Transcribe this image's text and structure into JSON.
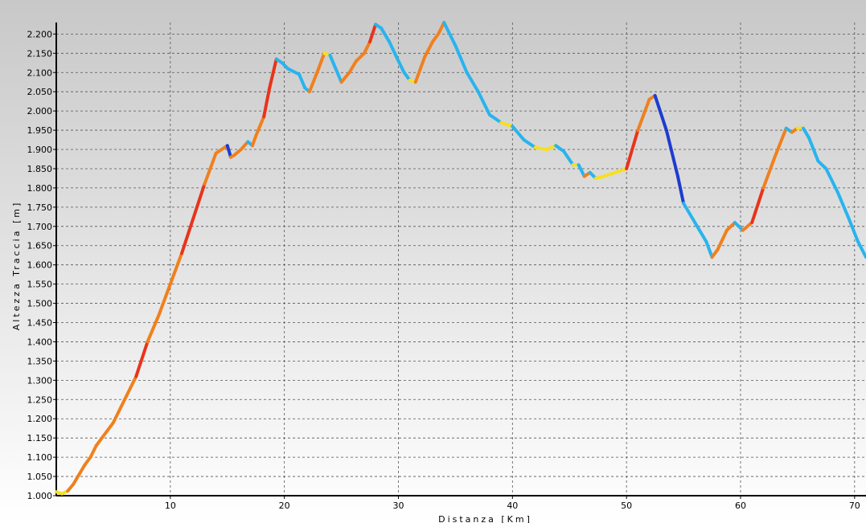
{
  "chart_data": {
    "type": "line",
    "xlabel": "Distanza [Km]",
    "ylabel": "Altezza Traccia [m]",
    "xlim": [
      0,
      71
    ],
    "ylim": [
      1000,
      2230
    ],
    "x_ticks": [
      10,
      20,
      30,
      40,
      50,
      60,
      70
    ],
    "x_tick_labels": [
      "10",
      "20",
      "30",
      "40",
      "50",
      "60",
      "70"
    ],
    "y_ticks": [
      1000,
      1050,
      1100,
      1150,
      1200,
      1250,
      1300,
      1350,
      1400,
      1450,
      1500,
      1550,
      1600,
      1650,
      1700,
      1750,
      1800,
      1850,
      1900,
      1950,
      2000,
      2050,
      2100,
      2150,
      2200
    ],
    "y_tick_labels": [
      "1.000",
      "1.050",
      "1.100",
      "1.150",
      "1.200",
      "1.250",
      "1.300",
      "1.350",
      "1.400",
      "1.450",
      "1.500",
      "1.550",
      "1.600",
      "1.650",
      "1.700",
      "1.750",
      "1.800",
      "1.850",
      "1.900",
      "1.950",
      "2.000",
      "2.050",
      "2.100",
      "2.150",
      "2.200"
    ],
    "grid": true,
    "background_gradient": [
      "#c8c8c8",
      "#ffffff"
    ],
    "line_color_scale": {
      "steep_climb": "#e8341c",
      "climb": "#f0801e",
      "flat": "#f5e020",
      "descent": "#28b4ee",
      "steep_descent": "#1e3cd0"
    },
    "series": [
      {
        "x": [
          0.0,
          0.5,
          1.0,
          1.5,
          2.0,
          2.5,
          3.0,
          3.5,
          4.0,
          5.0,
          6.0,
          7.0,
          8.0,
          9.0,
          10.0,
          11.0,
          12.0,
          13.0,
          14.0,
          15.0,
          15.3,
          15.6,
          16.2,
          16.8,
          17.2,
          17.5,
          18.2,
          18.7,
          19.3,
          19.8,
          20.3,
          21.3,
          21.8,
          22.2,
          23.0,
          23.5,
          24.0,
          24.5,
          25.0,
          25.7,
          26.3,
          27.0,
          27.5,
          28.0,
          28.5,
          29.2,
          30.0,
          30.5,
          31.0,
          31.5,
          32.3,
          33.0,
          33.5,
          34.0,
          35.0,
          36.0,
          37.0,
          38.0,
          39.0,
          40.0,
          41.0,
          42.0,
          43.0,
          43.8,
          44.5,
          45.3,
          45.8,
          46.3,
          46.8,
          47.3,
          48.0,
          49.0,
          50.0,
          51.0,
          52.0,
          52.5,
          53.5,
          54.5,
          55.0,
          56.0,
          57.0,
          57.5,
          58.0,
          58.8,
          59.5,
          60.2,
          61.0,
          62.0,
          63.0,
          64.0,
          64.5,
          65.0,
          65.5,
          66.0,
          66.8,
          67.5,
          68.5,
          69.5,
          70.3,
          71.0
        ],
        "y": [
          1010,
          1005,
          1012,
          1030,
          1055,
          1080,
          1100,
          1130,
          1150,
          1190,
          1250,
          1310,
          1400,
          1470,
          1550,
          1630,
          1720,
          1810,
          1890,
          1910,
          1880,
          1885,
          1900,
          1920,
          1910,
          1935,
          1985,
          2060,
          2135,
          2125,
          2110,
          2095,
          2060,
          2050,
          2110,
          2150,
          2145,
          2110,
          2075,
          2100,
          2130,
          2150,
          2180,
          2225,
          2215,
          2180,
          2130,
          2100,
          2080,
          2075,
          2140,
          2180,
          2200,
          2230,
          2170,
          2100,
          2050,
          1990,
          1970,
          1960,
          1925,
          1905,
          1900,
          1910,
          1895,
          1860,
          1860,
          1830,
          1840,
          1825,
          1830,
          1840,
          1850,
          1950,
          2030,
          2040,
          1950,
          1830,
          1760,
          1710,
          1660,
          1620,
          1640,
          1690,
          1710,
          1690,
          1710,
          1800,
          1880,
          1955,
          1945,
          1955,
          1955,
          1930,
          1870,
          1850,
          1790,
          1720,
          1660,
          1620
        ]
      }
    ]
  }
}
